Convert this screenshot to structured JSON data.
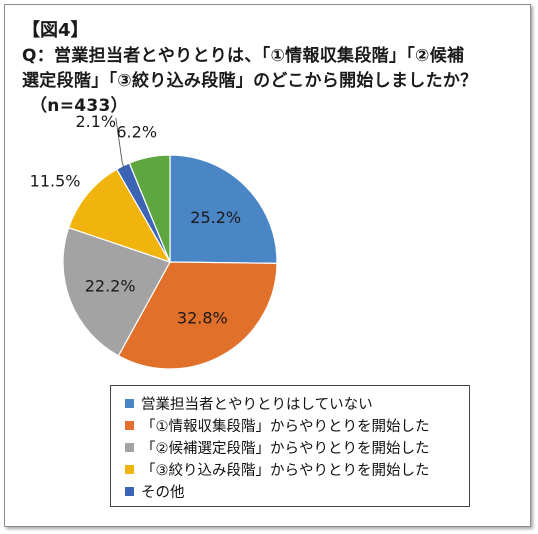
{
  "figure_label": "【図4】",
  "question": {
    "line1": "Q：営業担当者とやりとりは、「①情報収集段階」「②候補",
    "line2": "選定段階」「③絞り込み段階」のどこから開始しましたか？",
    "line3": "（n=433）"
  },
  "chart_data": {
    "type": "pie",
    "start_angle_deg": 0,
    "direction": "clockwise",
    "slices": [
      {
        "label": "営業担当者とやりとりはしていない",
        "value": 25.2,
        "display": "25.2%",
        "color": "#4a86c5",
        "label_pos": "inside"
      },
      {
        "label": "「①情報収集段階」からやりとりを開始した",
        "value": 32.8,
        "display": "32.8%",
        "color": "#e0702a",
        "label_pos": "inside"
      },
      {
        "label": "「②候補選定段階」からやりとりを開始した",
        "value": 22.2,
        "display": "22.2%",
        "color": "#a3a3a3",
        "label_pos": "inside"
      },
      {
        "label": "「③絞り込み段階」からやりとりを開始した",
        "value": 11.5,
        "display": "11.5%",
        "color": "#f1b30d",
        "label_pos": "outside"
      },
      {
        "label": "その他",
        "value": 2.1,
        "display": "2.1%",
        "color": "#3c64b4",
        "label_pos": "outside-leader"
      },
      {
        "label": "",
        "value": 6.2,
        "display": "6.2%",
        "color": "#5ea63f",
        "label_pos": "outside"
      }
    ],
    "legend": [
      {
        "label": "営業担当者とやりとりはしていない",
        "color": "#4a86c5"
      },
      {
        "label": "「①情報収集段階」からやりとりを開始した",
        "color": "#e0702a"
      },
      {
        "label": "「②候補選定段階」からやりとりを開始した",
        "color": "#a3a3a3"
      },
      {
        "label": "「③絞り込み段階」からやりとりを開始した",
        "color": "#f1b30d"
      },
      {
        "label": "その他",
        "color": "#3c64b4"
      }
    ],
    "legend_position": "bottom"
  }
}
